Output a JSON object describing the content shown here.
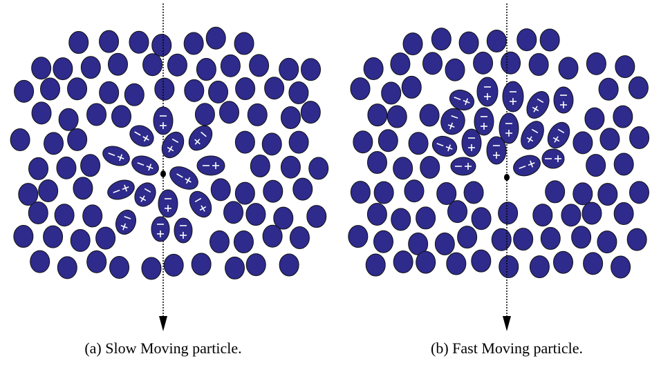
{
  "figure": {
    "captions": [
      "(a) Slow Moving particle.",
      "(b) Fast Moving particle."
    ]
  }
}
